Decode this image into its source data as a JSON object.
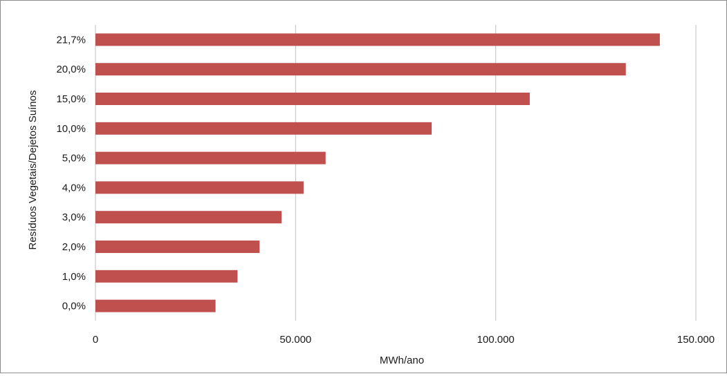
{
  "chart_data": {
    "type": "bar",
    "orientation": "horizontal",
    "title": "",
    "xlabel": "MWh/ano",
    "ylabel": "Resíduos Vegetais/Dejetos Suínos",
    "categories": [
      "0,0%",
      "1,0%",
      "2,0%",
      "3,0%",
      "4,0%",
      "5,0%",
      "10,0%",
      "15,0%",
      "20,0%",
      "21,7%"
    ],
    "values": [
      30000,
      35500,
      41000,
      46500,
      52000,
      57500,
      84000,
      108500,
      132500,
      141000
    ],
    "xlim": [
      0,
      150000
    ],
    "xticks": [
      {
        "value": 0,
        "label": "0"
      },
      {
        "value": 50000,
        "label": "50.000"
      },
      {
        "value": 100000,
        "label": "100.000"
      },
      {
        "value": 150000,
        "label": "150.000"
      }
    ],
    "grid": "vertical",
    "legend": "none",
    "bar_color": "#c0504d",
    "grid_color": "#bfbfbf"
  }
}
